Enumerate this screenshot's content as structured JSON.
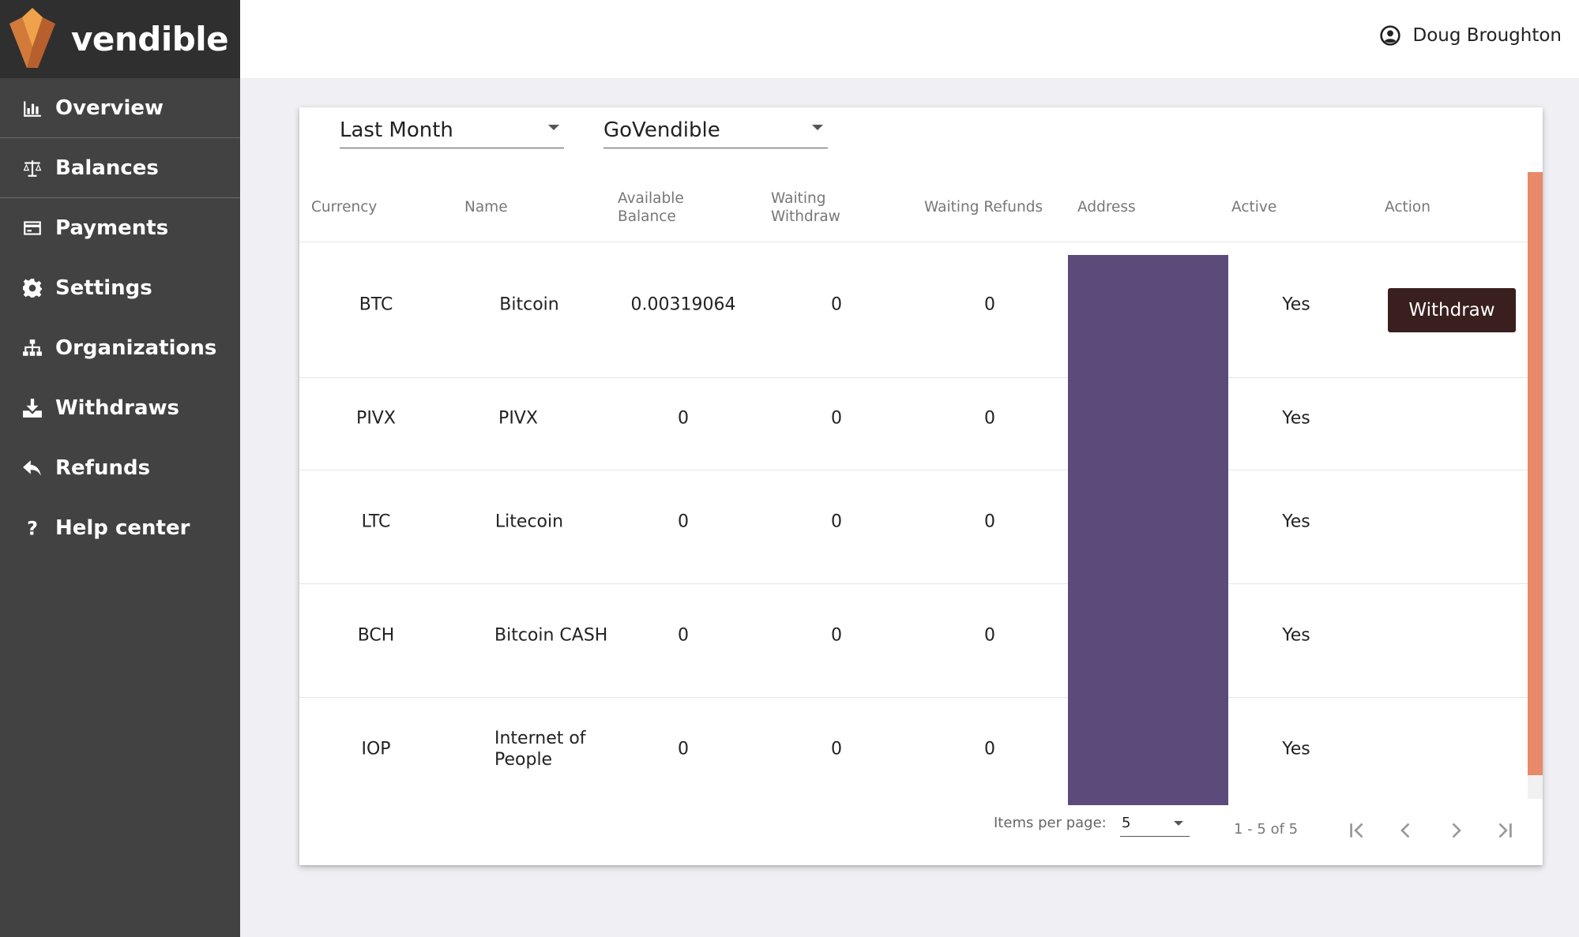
{
  "brand": {
    "name": "vendible"
  },
  "nav": [
    {
      "label": "Overview",
      "icon": "bar-chart-icon"
    },
    {
      "label": "Balances",
      "icon": "scale-icon"
    },
    {
      "label": "Payments",
      "icon": "credit-card-icon"
    },
    {
      "label": "Settings",
      "icon": "gear-icon"
    },
    {
      "label": "Organizations",
      "icon": "sitemap-icon"
    },
    {
      "label": "Withdraws",
      "icon": "download-icon"
    },
    {
      "label": "Refunds",
      "icon": "reply-icon"
    },
    {
      "label": "Help center",
      "icon": "question-icon"
    }
  ],
  "header": {
    "user_name": "Doug Broughton"
  },
  "filters": {
    "period": "Last Month",
    "organization": "GoVendible"
  },
  "table": {
    "headers": {
      "currency": "Currency",
      "name": "Name",
      "available_balance": "Available Balance",
      "waiting_withdraw": "Waiting Withdraw",
      "waiting_refunds": "Waiting Refunds",
      "address": "Address",
      "active": "Active",
      "action": "Action"
    },
    "rows": [
      {
        "currency": "BTC",
        "name": "Bitcoin",
        "available": "0.00319064",
        "waiting_withdraw": "0",
        "waiting_refunds": "0",
        "active": "Yes",
        "action": "Withdraw"
      },
      {
        "currency": "PIVX",
        "name": "PIVX",
        "available": "0",
        "waiting_withdraw": "0",
        "waiting_refunds": "0",
        "active": "Yes"
      },
      {
        "currency": "LTC",
        "name": "Litecoin",
        "available": "0",
        "waiting_withdraw": "0",
        "waiting_refunds": "0",
        "active": "Yes"
      },
      {
        "currency": "BCH",
        "name": "Bitcoin CASH",
        "available": "0",
        "waiting_withdraw": "0",
        "waiting_refunds": "0",
        "active": "Yes"
      },
      {
        "currency": "IOP",
        "name": "Internet of People",
        "available": "0",
        "waiting_withdraw": "0",
        "waiting_refunds": "0",
        "active": "Yes"
      }
    ]
  },
  "paginator": {
    "items_per_page_label": "Items per page:",
    "items_per_page": "5",
    "range": "1 - 5 of 5"
  },
  "colors": {
    "sidebar": "#424242",
    "logo_bar": "#2f2f2f",
    "address_redaction": "#5c4a7a",
    "withdraw_button": "#3a1f1f",
    "scrollbar": "#e8896a"
  }
}
